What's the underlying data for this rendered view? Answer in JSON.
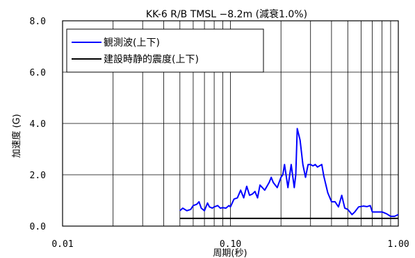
{
  "chart_data": {
    "type": "line",
    "title": "KK-6 R/B TMSL −8.2m (減衰1.0%)",
    "xlabel": "周期(秒)",
    "ylabel": "加速度 (G)",
    "xscale": "log",
    "xlim": [
      0.01,
      1.0
    ],
    "ylim": [
      0.0,
      8.0
    ],
    "xticks": [
      {
        "value": 0.01,
        "label": "0.01"
      },
      {
        "value": 0.1,
        "label": "0.10"
      },
      {
        "value": 1.0,
        "label": "1.00"
      }
    ],
    "yticks": [
      {
        "value": 0,
        "label": "0.0"
      },
      {
        "value": 2,
        "label": "2.0"
      },
      {
        "value": 4,
        "label": "4.0"
      },
      {
        "value": 6,
        "label": "6.0"
      },
      {
        "value": 8,
        "label": "8.0"
      }
    ],
    "grid": true,
    "legend": {
      "placement": "top-left"
    },
    "series": [
      {
        "name": "観測波(上下)",
        "color": "#0000ff",
        "x": [
          0.05,
          0.052,
          0.055,
          0.058,
          0.06,
          0.063,
          0.065,
          0.067,
          0.07,
          0.073,
          0.075,
          0.078,
          0.08,
          0.084,
          0.087,
          0.09,
          0.094,
          0.098,
          0.1,
          0.105,
          0.11,
          0.115,
          0.12,
          0.125,
          0.13,
          0.135,
          0.14,
          0.145,
          0.15,
          0.16,
          0.17,
          0.175,
          0.18,
          0.19,
          0.2,
          0.205,
          0.21,
          0.22,
          0.23,
          0.24,
          0.245,
          0.25,
          0.26,
          0.27,
          0.28,
          0.29,
          0.3,
          0.31,
          0.32,
          0.33,
          0.35,
          0.36,
          0.38,
          0.4,
          0.42,
          0.44,
          0.46,
          0.48,
          0.5,
          0.53,
          0.55,
          0.58,
          0.62,
          0.65,
          0.68,
          0.7,
          0.74,
          0.8,
          0.85,
          0.9,
          0.95,
          1.0
        ],
        "values": [
          0.6,
          0.7,
          0.6,
          0.65,
          0.8,
          0.85,
          0.95,
          0.7,
          0.6,
          0.9,
          0.75,
          0.7,
          0.75,
          0.8,
          0.7,
          0.72,
          0.7,
          0.8,
          0.75,
          1.05,
          1.1,
          1.4,
          1.1,
          1.55,
          1.2,
          1.25,
          1.35,
          1.1,
          1.6,
          1.4,
          1.7,
          1.9,
          1.7,
          1.5,
          1.9,
          2.0,
          2.4,
          1.5,
          2.4,
          1.5,
          2.0,
          3.8,
          3.35,
          2.4,
          1.9,
          2.4,
          2.4,
          2.35,
          2.4,
          2.3,
          2.4,
          1.95,
          1.3,
          0.95,
          0.95,
          0.75,
          1.2,
          0.7,
          0.65,
          0.45,
          0.55,
          0.75,
          0.78,
          0.76,
          0.8,
          0.55,
          0.55,
          0.55,
          0.48,
          0.38,
          0.38,
          0.45
        ]
      },
      {
        "name": "建設時静的震度(上下)",
        "color": "#000000",
        "x": [
          0.05,
          1.0
        ],
        "values": [
          0.3,
          0.3
        ]
      }
    ]
  }
}
